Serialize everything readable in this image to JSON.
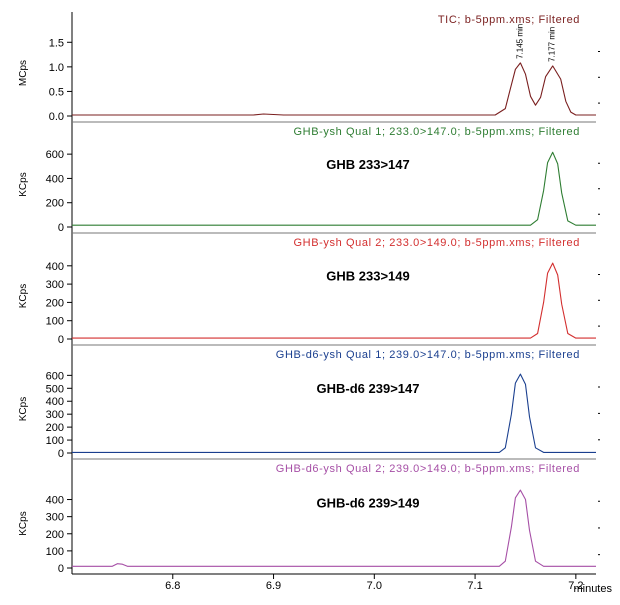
{
  "chart_data": [
    {
      "type": "line",
      "title": "TIC; b-5ppm.xms; Filtered",
      "ylabel": "MCps",
      "color": "#7a1f1f",
      "ylim": [
        0,
        1.75
      ],
      "yticks": [
        "0.0",
        "0.5",
        "1.0",
        "1.5"
      ],
      "ytick_values": [
        0,
        0.5,
        1.0,
        1.5
      ],
      "annotation": "",
      "peak_labels": [
        {
          "text": "7.145 min",
          "x": 7.145,
          "y": 1.08
        },
        {
          "text": "7.177 min",
          "x": 7.177,
          "y": 1.02
        }
      ],
      "series": [
        {
          "x": [
            6.7,
            6.88,
            6.89,
            6.9,
            6.91,
            7.12,
            7.13,
            7.135,
            7.14,
            7.145,
            7.15,
            7.155,
            7.16,
            7.165,
            7.17,
            7.177,
            7.185,
            7.19,
            7.195,
            7.2,
            7.22
          ],
          "values": [
            0.02,
            0.02,
            0.04,
            0.03,
            0.02,
            0.02,
            0.15,
            0.55,
            0.95,
            1.08,
            0.85,
            0.4,
            0.22,
            0.38,
            0.8,
            1.02,
            0.75,
            0.3,
            0.08,
            0.02,
            0.02
          ]
        }
      ]
    },
    {
      "type": "line",
      "title": "GHB-ysh Qual 1; 233.0>147.0; b-5ppm.xms; Filtered",
      "ylabel": "KCps",
      "color": "#2e7d32",
      "ylim": [
        0,
        700
      ],
      "yticks": [
        "0",
        "200",
        "400",
        "600"
      ],
      "ytick_values": [
        0,
        200,
        400,
        600
      ],
      "annotation": "GHB   233>147",
      "series": [
        {
          "x": [
            6.7,
            7.155,
            7.162,
            7.168,
            7.172,
            7.177,
            7.182,
            7.186,
            7.192,
            7.2,
            7.22
          ],
          "values": [
            15,
            15,
            60,
            300,
            530,
            615,
            520,
            280,
            50,
            15,
            15
          ]
        }
      ]
    },
    {
      "type": "line",
      "title": "GHB-ysh Qual 2; 233.0>149.0; b-5ppm.xms; Filtered",
      "ylabel": "KCps",
      "color": "#d32f2f",
      "ylim": [
        0,
        470
      ],
      "yticks": [
        "0",
        "100",
        "200",
        "300",
        "400"
      ],
      "ytick_values": [
        0,
        100,
        200,
        300,
        400
      ],
      "annotation": "GHB  233>149",
      "series": [
        {
          "x": [
            6.7,
            7.155,
            7.162,
            7.168,
            7.172,
            7.177,
            7.182,
            7.186,
            7.192,
            7.2,
            7.22
          ],
          "values": [
            5,
            5,
            30,
            200,
            360,
            415,
            350,
            190,
            30,
            5,
            5
          ]
        }
      ]
    },
    {
      "type": "line",
      "title": "GHB-d6-ysh Qual 1; 239.0>147.0; b-5ppm.xms; Filtered",
      "ylabel": "KCps",
      "color": "#1a3f8f",
      "ylim": [
        0,
        680
      ],
      "yticks": [
        "0",
        "100",
        "200",
        "300",
        "400",
        "500",
        "600"
      ],
      "ytick_values": [
        0,
        100,
        200,
        300,
        400,
        500,
        600
      ],
      "annotation": "GHB-d6  239>147",
      "series": [
        {
          "x": [
            6.7,
            7.124,
            7.13,
            7.136,
            7.14,
            7.145,
            7.15,
            7.154,
            7.16,
            7.168,
            7.22
          ],
          "values": [
            5,
            5,
            40,
            300,
            540,
            610,
            530,
            280,
            40,
            5,
            5
          ]
        }
      ]
    },
    {
      "type": "line",
      "title": "GHB-d6-ysh Qual 2; 239.0>149.0; b-5ppm.xms; Filtered",
      "ylabel": "KCps",
      "color": "#a64fa6",
      "ylim": [
        0,
        520
      ],
      "yticks": [
        "0",
        "100",
        "200",
        "300",
        "400"
      ],
      "ytick_values": [
        0,
        100,
        200,
        300,
        400
      ],
      "annotation": "GHB-d6 239>149",
      "series": [
        {
          "x": [
            6.7,
            6.74,
            6.745,
            6.75,
            6.755,
            7.124,
            7.13,
            7.136,
            7.14,
            7.145,
            7.15,
            7.154,
            7.16,
            7.168,
            7.22
          ],
          "values": [
            10,
            10,
            25,
            22,
            10,
            10,
            40,
            240,
            410,
            455,
            400,
            220,
            40,
            10,
            10
          ]
        }
      ]
    }
  ],
  "x_axis": {
    "xlim": [
      6.7,
      7.22
    ],
    "ticks": [
      6.8,
      6.9,
      7.0,
      7.1,
      7.2
    ],
    "tick_labels": [
      "6.8",
      "6.9",
      "7.0",
      "7.1",
      "7.2"
    ],
    "unit_label": "minutes"
  }
}
